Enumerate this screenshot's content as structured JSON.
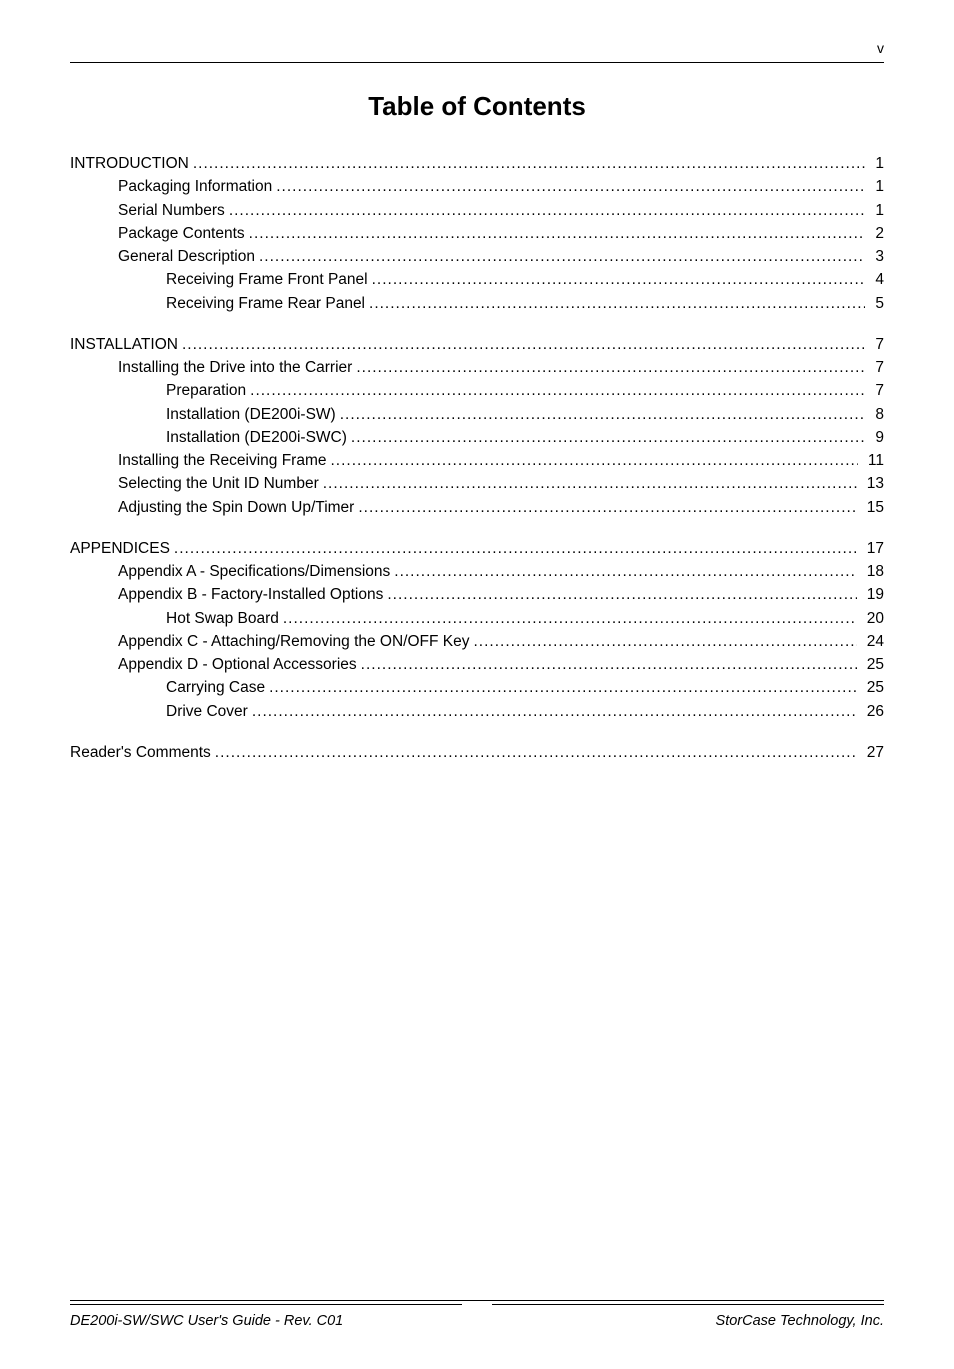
{
  "page_roman": "v",
  "title": "Table of Contents",
  "sections": [
    {
      "heading": {
        "label": "INTRODUCTION",
        "page": "1"
      },
      "items": [
        {
          "label": "Packaging Information",
          "page": "1",
          "indent": 1
        },
        {
          "label": "Serial Numbers",
          "page": "1",
          "indent": 1
        },
        {
          "label": "Package Contents",
          "page": "2",
          "indent": 1
        },
        {
          "label": "General Description",
          "page": "3",
          "indent": 1
        },
        {
          "label": "Receiving Frame Front Panel",
          "page": "4",
          "indent": 2
        },
        {
          "label": "Receiving Frame Rear Panel",
          "page": "5",
          "indent": 2
        }
      ]
    },
    {
      "heading": {
        "label": "INSTALLATION",
        "page": "7"
      },
      "items": [
        {
          "label": "Installing the Drive into the Carrier",
          "page": "7",
          "indent": 1
        },
        {
          "label": "Preparation",
          "page": "7",
          "indent": 2
        },
        {
          "label": "Installation (DE200i-SW)",
          "page": "8",
          "indent": 2
        },
        {
          "label": "Installation (DE200i-SWC)",
          "page": "9",
          "indent": 2
        },
        {
          "label": "Installing the Receiving Frame",
          "page": "11",
          "indent": 1
        },
        {
          "label": "Selecting the Unit ID Number",
          "page": "13",
          "indent": 1
        },
        {
          "label": "Adjusting the Spin Down Up/Timer",
          "page": "15",
          "indent": 1
        }
      ]
    },
    {
      "heading": {
        "label": "APPENDICES",
        "page": "17"
      },
      "items": [
        {
          "label": "Appendix A - Specifications/Dimensions",
          "page": "18",
          "indent": 1
        },
        {
          "label": "Appendix B - Factory-Installed Options",
          "page": "19",
          "indent": 1
        },
        {
          "label": "Hot Swap Board",
          "page": "20",
          "indent": 2
        },
        {
          "label": "Appendix C - Attaching/Removing the ON/OFF Key",
          "page": "24",
          "indent": 1
        },
        {
          "label": "Appendix D - Optional Accessories",
          "page": "25",
          "indent": 1
        },
        {
          "label": "Carrying Case",
          "page": "25",
          "indent": 2
        },
        {
          "label": "Drive Cover",
          "page": "26",
          "indent": 2
        }
      ]
    },
    {
      "heading": {
        "label": "Reader's Comments",
        "page": "27"
      },
      "items": []
    }
  ],
  "footer": {
    "left": "DE200i-SW/SWC User's Guide - Rev. C01",
    "right": "StorCase Technology, Inc."
  }
}
